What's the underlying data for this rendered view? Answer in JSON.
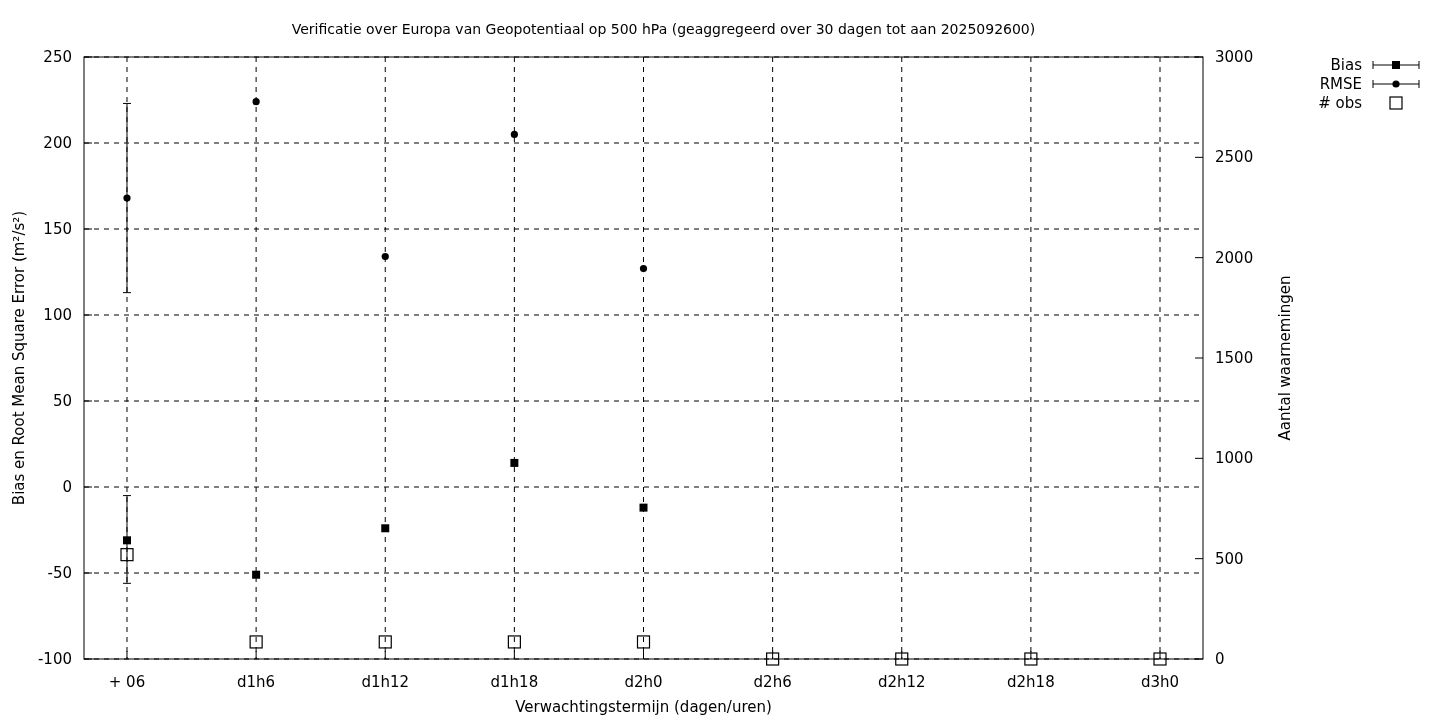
{
  "chart_data": {
    "type": "scatter",
    "title": "Verificatie over Europa van Geopotentiaal op 500 hPa (geaggregeerd over 30 dagen tot aan 2025092600)",
    "xlabel": "Verwachtingstermijn (dagen/uren)",
    "ylabel": "Bias en Root Mean Square Error (m²/s²)",
    "y2label": "Aantal waarnemingen",
    "categories": [
      "+ 06",
      "d1h6",
      "d1h12",
      "d1h18",
      "d2h0",
      "d2h6",
      "d2h12",
      "d2h18",
      "d3h0"
    ],
    "series": [
      {
        "name": "Bias",
        "color": "#000000",
        "marker": "square",
        "values": [
          -31,
          -51,
          -24,
          14,
          -12,
          null,
          null,
          null,
          null
        ],
        "errors": [
          [
            -56,
            -5
          ],
          null,
          null,
          null,
          null,
          null,
          null,
          null,
          null
        ]
      },
      {
        "name": "RMSE",
        "color": "#000000",
        "marker": "circle",
        "values": [
          168,
          224,
          134,
          205,
          127,
          null,
          null,
          null,
          null
        ],
        "errors": [
          [
            113,
            223
          ],
          null,
          null,
          null,
          null,
          null,
          null,
          null,
          null
        ]
      },
      {
        "name": "# obs",
        "color": "#000000",
        "marker": "square",
        "axis": "y2",
        "values": [
          520,
          85,
          85,
          85,
          85,
          0,
          0,
          0,
          0
        ]
      }
    ],
    "ylim": [
      -100,
      250
    ],
    "yticks": [
      -100,
      -50,
      0,
      50,
      100,
      150,
      200,
      250
    ],
    "y2lim": [
      0,
      3000
    ],
    "y2ticks": [
      0,
      500,
      1000,
      1500,
      2000,
      2500,
      3000
    ],
    "grid": true,
    "legend": "top right"
  }
}
